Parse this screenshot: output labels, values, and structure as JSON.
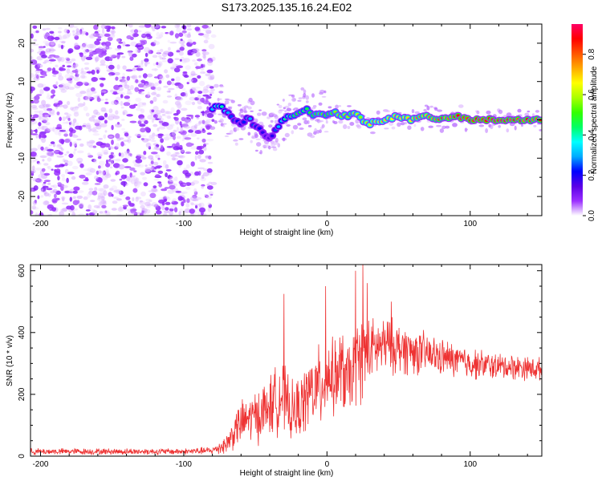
{
  "figure": {
    "title": "S173.2025.135.16.24.E02"
  },
  "chart_data": [
    {
      "type": "heatmap",
      "name": "spectrogram",
      "xlabel": "Height of straight line (km)",
      "ylabel": "Frequency (Hz)",
      "xlim": [
        -207,
        150
      ],
      "ylim": [
        -25,
        25
      ],
      "xticks": [
        -200,
        -100,
        0,
        100
      ],
      "xtick_labels": [
        "-200",
        "-100",
        "0",
        "100"
      ],
      "yticks": [
        -20,
        -10,
        0,
        10,
        20
      ],
      "ytick_labels": [
        "-20",
        "-10",
        "0",
        "10",
        "20"
      ],
      "noise_region_x": [
        -207,
        -79
      ],
      "signal_ridge": {
        "x": [
          -80,
          -75,
          -70,
          -65,
          -60,
          -55,
          -50,
          -45,
          -40,
          -35,
          -30,
          -25,
          -20,
          -15,
          -10,
          -5,
          0,
          5,
          10,
          15,
          20,
          25,
          30,
          40,
          50,
          60,
          70,
          80,
          90,
          100,
          110,
          120,
          130,
          140,
          150
        ],
        "freq_hz": [
          3,
          4,
          2,
          0,
          -1,
          1,
          -2,
          -3,
          -5,
          -2,
          0,
          1,
          2,
          3,
          1,
          2,
          1,
          2,
          1,
          1,
          2,
          0,
          -1,
          0,
          1,
          0,
          1,
          0,
          1,
          0,
          0,
          0,
          0,
          0,
          0
        ],
        "amplitude": [
          0.35,
          0.45,
          0.3,
          0.25,
          0.2,
          0.3,
          0.25,
          0.2,
          0.15,
          0.3,
          0.4,
          0.45,
          0.5,
          0.45,
          0.5,
          0.55,
          0.5,
          0.55,
          0.6,
          0.55,
          0.6,
          0.62,
          0.65,
          0.68,
          0.7,
          0.72,
          0.75,
          0.8,
          0.85,
          0.9,
          0.92,
          0.9,
          0.88,
          0.85,
          0.8
        ]
      }
    },
    {
      "type": "colorbar",
      "name": "colorbar",
      "label": "Normalized spectral amplitude",
      "range": [
        0,
        0.95
      ],
      "ticks": [
        0.0,
        0.2,
        0.4,
        0.6,
        0.8
      ],
      "tick_labels": [
        "0.0",
        "0.2",
        "0.4",
        "0.6",
        "0.8"
      ],
      "colors": [
        "#ffffff",
        "#9b30ff",
        "#5a00e6",
        "#0000ff",
        "#00aaff",
        "#00ffff",
        "#00ff66",
        "#33ff00",
        "#aaff00",
        "#ffff00",
        "#ffaa00",
        "#ff5500",
        "#ff0000",
        "#ff0066"
      ]
    },
    {
      "type": "line",
      "name": "snr",
      "xlabel": "Height of straight line (km)",
      "ylabel": "SNR (10 * v/v)",
      "xlim": [
        -207,
        150
      ],
      "ylim": [
        0,
        620
      ],
      "xticks": [
        -200,
        -100,
        0,
        100
      ],
      "xtick_labels": [
        "-200",
        "-100",
        "0",
        "100"
      ],
      "yticks": [
        0,
        200,
        400,
        600
      ],
      "ytick_labels": [
        "0",
        "200",
        "400",
        "600"
      ],
      "color": "#ee3333",
      "envelope": {
        "x": [
          -207,
          -150,
          -100,
          -80,
          -70,
          -62,
          -55,
          -45,
          -38,
          -32,
          -25,
          -18,
          -12,
          -5,
          0,
          5,
          10,
          15,
          20,
          25,
          30,
          40,
          50,
          60,
          70,
          80,
          90,
          100,
          110,
          120,
          130,
          140,
          150
        ],
        "mean": [
          15,
          15,
          15,
          18,
          40,
          100,
          120,
          140,
          170,
          200,
          140,
          160,
          210,
          220,
          270,
          250,
          280,
          240,
          300,
          330,
          340,
          360,
          350,
          340,
          330,
          320,
          310,
          300,
          295,
          290,
          290,
          285,
          280
        ],
        "noise": [
          12,
          12,
          12,
          15,
          40,
          80,
          90,
          110,
          120,
          140,
          110,
          120,
          140,
          160,
          150,
          140,
          160,
          140,
          160,
          170,
          120,
          110,
          100,
          90,
          80,
          70,
          65,
          60,
          55,
          50,
          50,
          45,
          45
        ]
      },
      "spikes": [
        {
          "x": -30,
          "y": 525
        },
        {
          "x": -1,
          "y": 550
        },
        {
          "x": 20,
          "y": 600
        },
        {
          "x": 25,
          "y": 620
        },
        {
          "x": 28,
          "y": 560
        },
        {
          "x": 45,
          "y": 500
        }
      ]
    }
  ]
}
